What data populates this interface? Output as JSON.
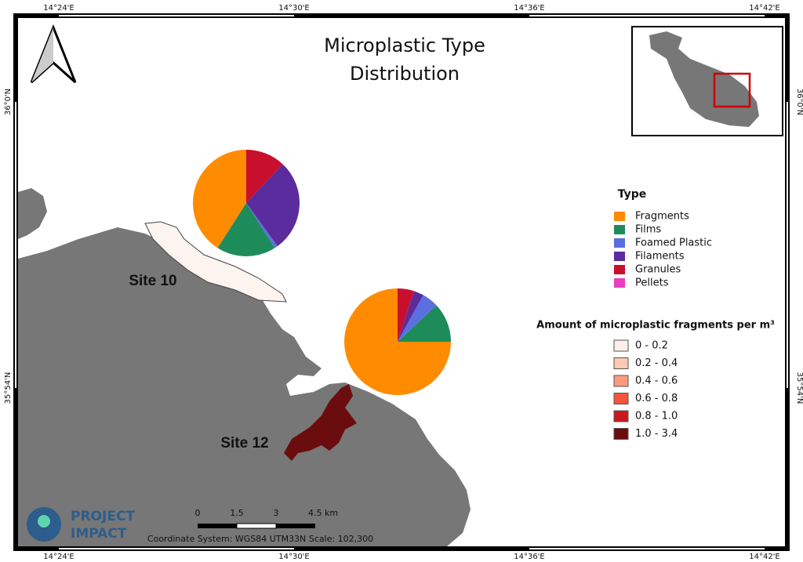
{
  "title_lines": [
    "Microplastic Type",
    "Distribution"
  ],
  "graticule": {
    "longitudes": [
      "14°24'E",
      "14°30'E",
      "14°36'E",
      "14°42'E"
    ],
    "latitudes": [
      "36°0'N",
      "35°54'N"
    ]
  },
  "chart_data": {
    "type": "pie",
    "categories": [
      "Fragments",
      "Films",
      "Foamed Plastic",
      "Filaments",
      "Granules",
      "Pellets"
    ],
    "colors": [
      "#ff8c00",
      "#1e8c5a",
      "#5b6fe0",
      "#5b2c9e",
      "#c8102e",
      "#e83ec0"
    ],
    "series": [
      {
        "name": "Site 10",
        "values": [
          41,
          18,
          1,
          28,
          12,
          0
        ]
      },
      {
        "name": "Site 12",
        "values": [
          75,
          12,
          5,
          3,
          5,
          0
        ]
      }
    ]
  },
  "legend_title": "Type",
  "class_legend": {
    "title": "Amount of microplastic fragments per m³",
    "classes": [
      "0 - 0.2",
      "0.2 - 0.4",
      "0.4 - 0.6",
      "0.6 - 0.8",
      "0.8 - 1.0",
      "1.0 - 3.4"
    ],
    "colors": [
      "#fdf0ec",
      "#fdc9b4",
      "#fb9a7c",
      "#f5553c",
      "#c9181d",
      "#6b0d0f"
    ]
  },
  "scale_bar": {
    "labels": [
      "0",
      "1.5",
      "3",
      "4.5 km"
    ]
  },
  "footer": "Coordinate System: WGS84 UTM33N  Scale: 102,300",
  "logo": [
    "PROJECT",
    "IMPACT"
  ]
}
